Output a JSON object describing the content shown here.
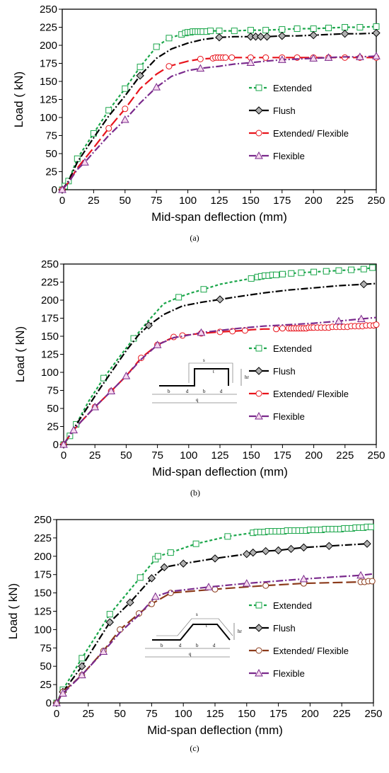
{
  "colors": {
    "extended": "#1aa64a",
    "flush": "#000000",
    "extended_flexible": "#e8141c",
    "extended_flexible_c": "#8b3a1a",
    "flexible": "#7a2a8c"
  },
  "chart_data": [
    {
      "type": "line",
      "caption": "(a)",
      "xlabel": "Mid-span deflection (mm)",
      "ylabel": "Load ( kN)",
      "xlim": [
        0,
        250
      ],
      "ylim": [
        0,
        250
      ],
      "xticks": [
        "0",
        "25",
        "50",
        "75",
        "100",
        "125",
        "150",
        "175",
        "200",
        "225",
        "250"
      ],
      "yticks": [
        "0",
        "25",
        "50",
        "75",
        "100",
        "125",
        "150",
        "175",
        "200",
        "225",
        "250"
      ],
      "grid": false,
      "legend_position": "right",
      "series": [
        {
          "name": "Extended",
          "key": "extended",
          "marker": "square",
          "dash": "4,3",
          "x": [
            0,
            2,
            5,
            12,
            25,
            37,
            50,
            62,
            75,
            85,
            95,
            98,
            100,
            102,
            104,
            106,
            108,
            110,
            112,
            115,
            118,
            125,
            137,
            150,
            162,
            175,
            187,
            200,
            212,
            225,
            237,
            250
          ],
          "y": [
            0,
            5,
            12,
            43,
            78,
            110,
            140,
            170,
            198,
            210,
            215,
            217,
            218,
            218,
            219,
            219,
            219,
            219,
            219,
            219,
            220,
            220,
            220,
            221,
            221,
            222,
            223,
            223,
            224,
            225,
            225,
            226
          ]
        },
        {
          "name": "Flush",
          "key": "flush",
          "marker": "diamond",
          "dash": "10,3,2,3",
          "x": [
            0,
            2,
            5,
            12,
            25,
            37,
            50,
            62,
            75,
            87,
            100,
            112,
            125,
            137,
            150,
            154,
            158,
            163,
            175,
            187,
            200,
            212,
            225,
            237,
            250
          ],
          "y": [
            0,
            5,
            12,
            38,
            72,
            102,
            130,
            158,
            182,
            195,
            203,
            208,
            211,
            212,
            212,
            212,
            212,
            212,
            213,
            213,
            214,
            215,
            216,
            216,
            217
          ],
          "markers": [
            0,
            7,
            12,
            14,
            15,
            16,
            17,
            18,
            20,
            22,
            24
          ]
        },
        {
          "name": "Extended/ Flexible",
          "key": "extended_flexible",
          "marker": "circle",
          "dash": "14,5",
          "x": [
            0,
            2,
            5,
            12,
            25,
            37,
            50,
            62,
            75,
            85,
            100,
            110,
            120,
            122,
            124,
            126,
            128,
            130,
            135,
            140,
            150,
            162,
            175,
            187,
            200,
            212,
            225,
            237,
            250
          ],
          "y": [
            0,
            4,
            10,
            30,
            58,
            85,
            112,
            140,
            160,
            171,
            178,
            181,
            182,
            183,
            183,
            183,
            183,
            183,
            183,
            183,
            183,
            183,
            183,
            183,
            183,
            183,
            183,
            183,
            183
          ],
          "markers": [
            0,
            5,
            6,
            9,
            11,
            12,
            13,
            14,
            15,
            16,
            17,
            18,
            20,
            21,
            22,
            23,
            24,
            25,
            26,
            27,
            28
          ]
        },
        {
          "name": "Flexible",
          "key": "flexible",
          "marker": "triangle",
          "dash": "10,3,2,3",
          "x": [
            0,
            2,
            5,
            12,
            18,
            25,
            37,
            50,
            62,
            75,
            87,
            100,
            110,
            125,
            137,
            150,
            162,
            175,
            187,
            200,
            212,
            225,
            237,
            250
          ],
          "y": [
            0,
            4,
            10,
            28,
            38,
            52,
            75,
            97,
            120,
            142,
            157,
            165,
            168,
            171,
            174,
            176,
            178,
            180,
            181,
            182,
            183,
            184,
            184,
            185
          ],
          "markers": [
            0,
            4,
            7,
            9,
            12,
            15,
            17,
            19,
            20,
            22,
            23
          ]
        }
      ]
    },
    {
      "type": "line",
      "caption": "(b)",
      "xlabel": "Mid-span deflection (mm)",
      "ylabel": "Load ( kN)",
      "xlim": [
        0,
        250
      ],
      "ylim": [
        0,
        250
      ],
      "xticks": [
        "0",
        "25",
        "50",
        "75",
        "100",
        "125",
        "150",
        "175",
        "200",
        "225",
        "250"
      ],
      "yticks": [
        "0",
        "25",
        "50",
        "75",
        "100",
        "125",
        "150",
        "175",
        "200",
        "225",
        "250"
      ],
      "grid": false,
      "legend_position": "right",
      "inset_labels": [
        "s",
        "t",
        "hr",
        "b",
        "d",
        "b",
        "d",
        "q"
      ],
      "series": [
        {
          "name": "Extended",
          "key": "extended",
          "marker": "square",
          "dash": "4,3",
          "x": [
            0,
            5,
            10,
            20,
            32,
            44,
            56,
            68,
            80,
            92,
            102,
            112,
            125,
            137,
            150,
            155,
            158,
            161,
            164,
            167,
            170,
            175,
            182,
            190,
            200,
            210,
            220,
            230,
            240,
            247
          ],
          "y": [
            0,
            12,
            28,
            60,
            92,
            120,
            147,
            172,
            195,
            204,
            210,
            215,
            222,
            226,
            230,
            232,
            233,
            234,
            234,
            235,
            235,
            236,
            237,
            238,
            239,
            240,
            241,
            242,
            243,
            245
          ],
          "markers": [
            0,
            1,
            2,
            4,
            6,
            9,
            11,
            14,
            15,
            16,
            17,
            18,
            19,
            20,
            21,
            22,
            23,
            24,
            25,
            26,
            27,
            28,
            29
          ]
        },
        {
          "name": "Flush",
          "key": "flush",
          "marker": "diamond",
          "dash": "10,3,2,3",
          "x": [
            0,
            3,
            8,
            14,
            20,
            30,
            40,
            50,
            60,
            68,
            80,
            95,
            110,
            125,
            140,
            160,
            180,
            200,
            220,
            240,
            250
          ],
          "y": [
            0,
            8,
            22,
            38,
            54,
            80,
            105,
            130,
            152,
            165,
            180,
            192,
            197,
            201,
            205,
            210,
            214,
            217,
            220,
            222,
            223
          ],
          "markers": [
            0,
            9,
            13,
            19
          ]
        },
        {
          "name": "Extended/ Flexible",
          "key": "extended_flexible",
          "marker": "circle",
          "dash": "14,5",
          "x": [
            0,
            3,
            8,
            14,
            25,
            38,
            50,
            62,
            75,
            88,
            95,
            110,
            125,
            135,
            145,
            150,
            160,
            170,
            175,
            180,
            182,
            184,
            186,
            188,
            190,
            192,
            194,
            196,
            198,
            200,
            203,
            206,
            209,
            212,
            215,
            218,
            221,
            224,
            227,
            230,
            233,
            236,
            239,
            242,
            245,
            248,
            250
          ],
          "y": [
            0,
            8,
            20,
            32,
            52,
            74,
            95,
            120,
            138,
            149,
            151,
            154,
            156,
            157,
            158,
            159,
            160,
            160,
            161,
            161,
            161,
            161,
            161,
            161,
            161,
            161,
            161,
            162,
            162,
            162,
            162,
            162,
            162,
            162,
            163,
            163,
            163,
            163,
            163,
            164,
            164,
            164,
            164,
            165,
            165,
            165,
            166
          ],
          "markers": [
            0,
            4,
            5,
            7,
            8,
            9,
            10,
            11,
            12,
            13,
            14,
            17,
            18,
            19,
            20,
            21,
            22,
            23,
            24,
            25,
            26,
            27,
            28,
            29,
            30,
            31,
            32,
            33,
            34,
            35,
            36,
            37,
            38,
            39,
            40,
            41,
            42,
            43,
            44,
            45,
            46
          ]
        },
        {
          "name": "Flexible",
          "key": "flexible",
          "marker": "triangle",
          "dash": "10,3,2,3",
          "x": [
            0,
            3,
            8,
            14,
            25,
            38,
            50,
            62,
            75,
            88,
            95,
            110,
            125,
            140,
            160,
            180,
            200,
            220,
            238,
            250
          ],
          "y": [
            0,
            8,
            20,
            32,
            52,
            74,
            95,
            118,
            138,
            148,
            150,
            155,
            158,
            161,
            164,
            166,
            168,
            171,
            174,
            176
          ],
          "markers": [
            0,
            2,
            4,
            5,
            6,
            8,
            11,
            17,
            18
          ]
        }
      ]
    },
    {
      "type": "line",
      "caption": "(c)",
      "xlabel": "Mid-span deflection (mm)",
      "ylabel": "Load ( kN)",
      "xlim": [
        0,
        250
      ],
      "ylim": [
        0,
        250
      ],
      "xticks": [
        "0",
        "25",
        "50",
        "75",
        "100",
        "125",
        "150",
        "175",
        "200",
        "225",
        "250"
      ],
      "yticks": [
        "0",
        "25",
        "50",
        "75",
        "100",
        "125",
        "150",
        "175",
        "200",
        "225",
        "250"
      ],
      "grid": false,
      "legend_position": "right",
      "inset_labels": [
        "s",
        "t",
        "hr",
        "b",
        "d",
        "b",
        "d",
        "q"
      ],
      "series": [
        {
          "name": "Extended",
          "key": "extended",
          "marker": "square",
          "dash": "4,3",
          "x": [
            0,
            5,
            20,
            42,
            66,
            78,
            80,
            90,
            110,
            135,
            155,
            158,
            161,
            164,
            167,
            170,
            173,
            176,
            179,
            182,
            185,
            188,
            191,
            194,
            197,
            200,
            203,
            206,
            209,
            212,
            215,
            218,
            221,
            224,
            227,
            230,
            233,
            236,
            239,
            242,
            245,
            248
          ],
          "y": [
            0,
            18,
            61,
            121,
            171,
            196,
            200,
            205,
            217,
            227,
            232,
            233,
            233,
            233,
            234,
            234,
            234,
            234,
            234,
            235,
            235,
            235,
            235,
            235,
            235,
            236,
            236,
            236,
            236,
            237,
            237,
            237,
            237,
            237,
            238,
            238,
            238,
            239,
            239,
            239,
            240,
            240
          ]
        },
        {
          "name": "Flush",
          "key": "flush",
          "marker": "diamond",
          "dash": "10,3,2,3",
          "x": [
            0,
            5,
            20,
            42,
            58,
            75,
            85,
            100,
            125,
            150,
            155,
            165,
            175,
            185,
            195,
            215,
            245
          ],
          "y": [
            0,
            15,
            50,
            110,
            137,
            170,
            185,
            190,
            197,
            203,
            205,
            207,
            208,
            210,
            212,
            214,
            217
          ]
        },
        {
          "name": "Extended/ Flexible",
          "key": "extended_flexible_c",
          "marker": "circle",
          "dash": "14,5",
          "x": [
            0,
            5,
            20,
            37,
            50,
            65,
            75,
            90,
            125,
            165,
            195,
            240,
            243,
            246,
            249
          ],
          "y": [
            0,
            15,
            38,
            71,
            100,
            122,
            135,
            150,
            155,
            160,
            163,
            165,
            165,
            166,
            166
          ]
        },
        {
          "name": "Flexible",
          "key": "flexible",
          "marker": "triangle",
          "dash": "10,3,2,3",
          "x": [
            0,
            5,
            20,
            37,
            50,
            65,
            78,
            90,
            120,
            150,
            195,
            240,
            250
          ],
          "y": [
            0,
            13,
            38,
            70,
            96,
            120,
            145,
            152,
            158,
            163,
            169,
            174,
            176
          ],
          "markers": [
            0,
            1,
            2,
            3,
            6,
            8,
            9,
            10,
            11
          ]
        }
      ]
    }
  ]
}
